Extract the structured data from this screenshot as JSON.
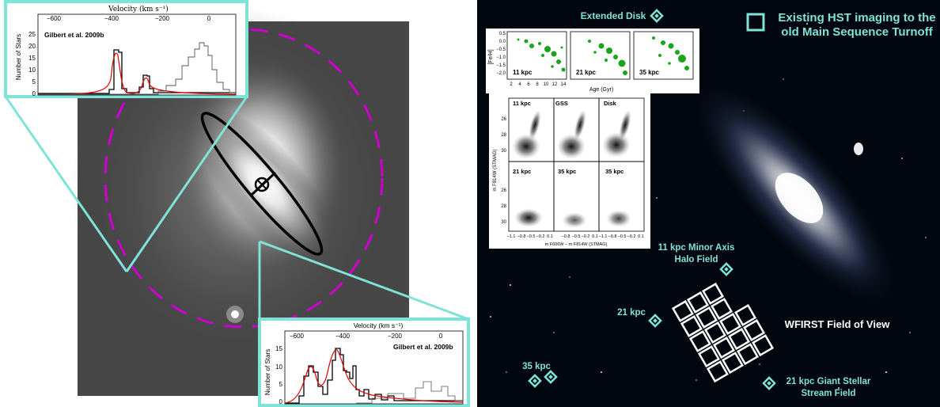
{
  "colors": {
    "accent_cyan": "#7fe3d8",
    "magenta": "#cc00cc",
    "data_red": "#e00000",
    "data_green": "#1aa51a",
    "space": "#02060e"
  },
  "left_panel": {
    "top_inset": {
      "axis_label_top": "Velocity (km s⁻¹)",
      "ylabel": "Number of Stars",
      "citation": "Gilbert et al. 2009b",
      "x_ticks": [
        "−600",
        "−400",
        "−200",
        "0"
      ],
      "y_ticks": [
        "25",
        "20",
        "15",
        "10",
        "5",
        "0"
      ]
    },
    "bottom_inset": {
      "axis_label_top": "Velocity (km s⁻¹)",
      "ylabel": "Number of Stars",
      "citation": "Gilbert et al. 2009b",
      "x_ticks": [
        "−600",
        "−400",
        "−200",
        "0"
      ],
      "y_ticks": [
        "15",
        "10",
        "5",
        "0"
      ]
    }
  },
  "right_panel": {
    "legend_text_line1": "Existing HST imaging to the",
    "legend_text_line2": "old Main Sequence Turnoff",
    "labels": {
      "extended_disk": "Extended Disk",
      "minor_axis_line1": "11 kpc Minor Axis",
      "minor_axis_line2": "Halo Field",
      "kpc21": "21 kpc",
      "kpc35": "35 kpc",
      "wfirst": "WFIRST Field of View",
      "gss_line1": "21 kpc Giant Stellar",
      "gss_line2": "Stream Field"
    },
    "age_panels": {
      "ylabel": "[Fe/H]",
      "xlabel": "Age (Gyr)",
      "y_ticks": [
        "0.5",
        "0.0",
        "−0.5",
        "−1.0",
        "−1.5",
        "−2.0"
      ],
      "x_ticks": [
        "2",
        "4",
        "6",
        "8",
        "10",
        "12",
        "14"
      ],
      "panel_labels": [
        "11 kpc",
        "21 kpc",
        "35 kpc"
      ]
    },
    "cmd_panels": {
      "ylabel": "m F814W (STMAG)",
      "xlabel": "m F606W − m F814W (STMAG)",
      "y_ticks": [
        "26",
        "28",
        "30"
      ],
      "x_ticks": [
        "−1.1",
        "−0.8",
        "−0.5",
        "−0.2",
        "0.1"
      ],
      "top_labels": [
        "11 kpc",
        "GSS",
        "Disk"
      ],
      "bottom_labels": [
        "21 kpc",
        "35 kpc",
        "35 kpc"
      ]
    }
  }
}
